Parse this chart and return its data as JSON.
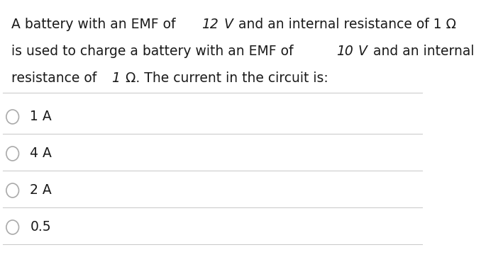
{
  "question_lines": [
    "A battery with an EMF of 12  V and an internal resistance of 1 Ω",
    "is used to charge a battery with an EMF of 10  V and an internal",
    "resistance of 1 Ω. The current in the circuit is:"
  ],
  "italic_words": {
    "line0": [
      "12",
      "V"
    ],
    "line1": [
      "10",
      "V"
    ],
    "line2": [
      "1"
    ]
  },
  "options": [
    "1 A",
    "4 A",
    "2 A",
    "0.5"
  ],
  "background_color": "#ffffff",
  "text_color": "#1a1a1a",
  "line_color": "#cccccc",
  "circle_color": "#aaaaaa",
  "font_size_question": 13.5,
  "font_size_options": 13.5
}
